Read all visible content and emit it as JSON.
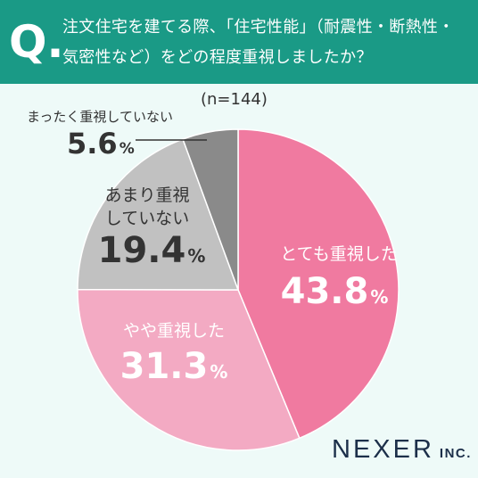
{
  "question": {
    "mark": "Q.",
    "line1": "注文住宅を建てる際、「住宅性能」（耐震性・断熱性・",
    "line2": "気密性など）をどの程度重視しましたか？"
  },
  "sample": "(n=144)",
  "chart_data": {
    "type": "pie",
    "categories": [
      "とても重視した",
      "やや重視した",
      "あまり重視していない",
      "まったく重視していない"
    ],
    "values": [
      43.8,
      31.3,
      19.4,
      5.6
    ],
    "unit": "%",
    "colors": [
      "#f07aa0",
      "#f3aac3",
      "#c1c1c1",
      "#8a8a8a"
    ],
    "start": "12 o'clock, clockwise"
  },
  "labels": {
    "very": {
      "category": "とても重視した",
      "value": "43.8",
      "unit": "%"
    },
    "somewhat": {
      "category": "やや重視した",
      "value": "31.3",
      "unit": "%"
    },
    "notmuch": {
      "category_line1": "あまり重視",
      "category_line2": "していない",
      "value": "19.4",
      "unit": "%"
    },
    "notatall": {
      "category": "まったく重視していない",
      "value": "5.6",
      "unit": "%"
    }
  },
  "logo": {
    "name": "NEXER",
    "suffix": "INC."
  }
}
